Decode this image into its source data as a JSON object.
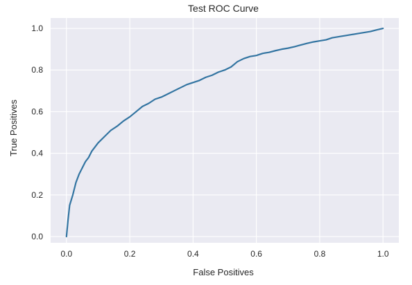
{
  "chart_data": {
    "type": "line",
    "title": "Test ROC Curve",
    "xlabel": "False Positives",
    "ylabel": "True Positives",
    "xlim": [
      -0.05,
      1.05
    ],
    "ylim": [
      -0.03,
      1.05
    ],
    "grid": true,
    "background_color": "#EAEAF2",
    "grid_color": "#FFFFFF",
    "x_ticks": [
      0.0,
      0.2,
      0.4,
      0.6,
      0.8,
      1.0
    ],
    "y_ticks": [
      0.0,
      0.2,
      0.4,
      0.6,
      0.8,
      1.0
    ],
    "x_tick_labels": [
      "0.0",
      "0.2",
      "0.4",
      "0.6",
      "0.8",
      "1.0"
    ],
    "y_tick_labels": [
      "0.0",
      "0.2",
      "0.4",
      "0.6",
      "0.8",
      "1.0"
    ],
    "series": [
      {
        "color": "#3274A1",
        "x": [
          0.0,
          0.005,
          0.01,
          0.02,
          0.03,
          0.04,
          0.05,
          0.06,
          0.07,
          0.08,
          0.09,
          0.1,
          0.12,
          0.14,
          0.16,
          0.18,
          0.2,
          0.22,
          0.24,
          0.26,
          0.28,
          0.3,
          0.32,
          0.34,
          0.36,
          0.38,
          0.4,
          0.42,
          0.44,
          0.46,
          0.48,
          0.5,
          0.52,
          0.54,
          0.56,
          0.58,
          0.6,
          0.62,
          0.64,
          0.66,
          0.68,
          0.7,
          0.72,
          0.74,
          0.76,
          0.78,
          0.8,
          0.82,
          0.84,
          0.86,
          0.88,
          0.9,
          0.92,
          0.94,
          0.96,
          0.98,
          1.0
        ],
        "y": [
          0.0,
          0.08,
          0.15,
          0.2,
          0.26,
          0.3,
          0.33,
          0.36,
          0.38,
          0.41,
          0.43,
          0.45,
          0.48,
          0.51,
          0.53,
          0.555,
          0.575,
          0.6,
          0.625,
          0.64,
          0.66,
          0.67,
          0.685,
          0.7,
          0.715,
          0.73,
          0.74,
          0.75,
          0.765,
          0.775,
          0.79,
          0.8,
          0.815,
          0.84,
          0.855,
          0.865,
          0.87,
          0.88,
          0.885,
          0.893,
          0.9,
          0.905,
          0.912,
          0.92,
          0.928,
          0.935,
          0.94,
          0.945,
          0.955,
          0.96,
          0.965,
          0.97,
          0.975,
          0.98,
          0.985,
          0.993,
          1.0
        ]
      }
    ]
  }
}
